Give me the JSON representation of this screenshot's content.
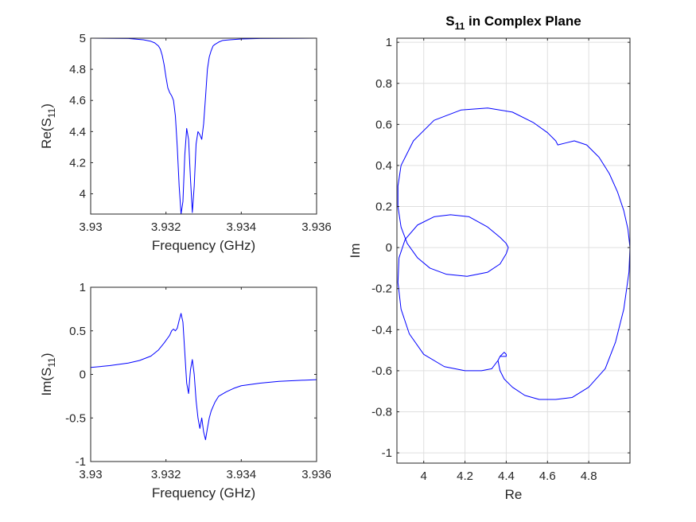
{
  "chart_data": [
    {
      "id": "re",
      "type": "line",
      "title": "",
      "xlabel": "Frequency (GHz)",
      "ylabel": {
        "main": "Re(S",
        "sub": "11",
        "close": ")"
      },
      "xlim": [
        3.93,
        3.936
      ],
      "ylim": [
        3.87,
        5.0
      ],
      "xticks": [
        3.93,
        3.932,
        3.934,
        3.936
      ],
      "xtick_labels": [
        "3.93",
        "3.932",
        "3.934",
        "3.936"
      ],
      "yticks": [
        4.0,
        4.2,
        4.4,
        4.6,
        4.8,
        5.0
      ],
      "ytick_labels": [
        "4",
        "4.2",
        "4.4",
        "4.6",
        "4.8",
        "5"
      ],
      "grid": false,
      "color": "#0000ff",
      "series": [
        {
          "x": [
            3.93,
            3.931,
            3.9314,
            3.9316,
            3.9317,
            3.9318,
            3.93185,
            3.9319,
            3.93195,
            3.932,
            3.93205,
            3.9321,
            3.93215,
            3.9322,
            3.93225,
            3.9323,
            3.93235,
            3.9324,
            3.93245,
            3.9325,
            3.93255,
            3.9326,
            3.93265,
            3.9327,
            3.93275,
            3.9328,
            3.93285,
            3.9329,
            3.93295,
            3.933,
            3.93305,
            3.9331,
            3.93315,
            3.9332,
            3.93325,
            3.9333,
            3.9334,
            3.9335,
            3.9337,
            3.934,
            3.9345,
            3.936
          ],
          "y": [
            5.0,
            4.998,
            4.99,
            4.98,
            4.97,
            4.95,
            4.93,
            4.89,
            4.83,
            4.75,
            4.68,
            4.65,
            4.63,
            4.6,
            4.5,
            4.3,
            4.05,
            3.87,
            3.95,
            4.25,
            4.42,
            4.35,
            4.1,
            3.88,
            4.05,
            4.32,
            4.4,
            4.38,
            4.35,
            4.45,
            4.62,
            4.8,
            4.88,
            4.92,
            4.95,
            4.96,
            4.975,
            4.985,
            4.99,
            4.995,
            4.998,
            5.0
          ]
        }
      ]
    },
    {
      "id": "im",
      "type": "line",
      "title": "",
      "xlabel": "Frequency (GHz)",
      "ylabel": {
        "main": "Im(S",
        "sub": "11",
        "close": ")"
      },
      "xlim": [
        3.93,
        3.936
      ],
      "ylim": [
        -1,
        1
      ],
      "xticks": [
        3.93,
        3.932,
        3.934,
        3.936
      ],
      "xtick_labels": [
        "3.93",
        "3.932",
        "3.934",
        "3.936"
      ],
      "yticks": [
        -1,
        -0.5,
        0,
        0.5,
        1
      ],
      "ytick_labels": [
        "-1",
        "-0.5",
        "0",
        "0.5",
        "1"
      ],
      "grid": false,
      "color": "#0000ff",
      "series": [
        {
          "x": [
            3.93,
            3.9305,
            3.931,
            3.9313,
            3.9316,
            3.9318,
            3.93195,
            3.9321,
            3.93215,
            3.9322,
            3.93225,
            3.9323,
            3.93235,
            3.9324,
            3.93245,
            3.9325,
            3.93255,
            3.9326,
            3.93265,
            3.9327,
            3.93275,
            3.9328,
            3.93285,
            3.9329,
            3.93295,
            3.933,
            3.93305,
            3.9331,
            3.93315,
            3.9332,
            3.9333,
            3.9334,
            3.9336,
            3.9338,
            3.934,
            3.9345,
            3.935,
            3.936
          ],
          "y": [
            0.08,
            0.1,
            0.13,
            0.16,
            0.21,
            0.28,
            0.36,
            0.45,
            0.5,
            0.52,
            0.5,
            0.53,
            0.62,
            0.7,
            0.6,
            0.25,
            -0.1,
            -0.22,
            0.05,
            0.17,
            0.0,
            -0.3,
            -0.5,
            -0.62,
            -0.5,
            -0.66,
            -0.75,
            -0.62,
            -0.5,
            -0.42,
            -0.32,
            -0.25,
            -0.2,
            -0.16,
            -0.13,
            -0.1,
            -0.08,
            -0.06
          ]
        }
      ]
    },
    {
      "id": "cp",
      "type": "line",
      "title": {
        "main": "S",
        "sub": "11",
        "rest": " in Complex Plane"
      },
      "xlabel": "Re",
      "ylabel": "Im",
      "xlim": [
        3.87,
        5.0
      ],
      "ylim": [
        -1.05,
        1.02
      ],
      "xticks": [
        4.0,
        4.2,
        4.4,
        4.6,
        4.8
      ],
      "xtick_labels": [
        "4",
        "4.2",
        "4.4",
        "4.6",
        "4.8"
      ],
      "yticks": [
        -1,
        -0.8,
        -0.6,
        -0.4,
        -0.2,
        0,
        0.2,
        0.4,
        0.6,
        0.8,
        1
      ],
      "ytick_labels": [
        "-1",
        "-0.8",
        "-0.6",
        "-0.4",
        "-0.2",
        "0",
        "0.2",
        "0.4",
        "0.6",
        "0.8",
        "1"
      ],
      "grid": true,
      "color": "#0000ff",
      "series": [
        {
          "x": [
            5.0,
            4.995,
            4.97,
            4.93,
            4.88,
            4.8,
            4.72,
            4.64,
            4.56,
            4.49,
            4.43,
            4.39,
            4.37,
            4.36,
            4.37,
            4.39,
            4.4,
            4.4,
            4.38,
            4.37,
            4.36,
            4.33,
            4.28,
            4.2,
            4.1,
            4.0,
            3.93,
            3.89,
            3.875,
            3.88,
            3.91,
            3.97,
            4.05,
            4.13,
            4.22,
            4.31,
            4.37,
            4.4,
            4.41,
            4.4,
            4.37,
            4.31,
            4.21,
            4.11,
            4.03,
            3.97,
            3.92,
            3.89,
            3.875,
            3.875,
            3.89,
            3.95,
            4.05,
            4.18,
            4.31,
            4.43,
            4.53,
            4.6,
            4.64,
            4.65,
            4.69,
            4.73,
            4.79,
            4.85,
            4.9,
            4.94,
            4.97,
            4.99,
            5.0
          ],
          "y": [
            0.0,
            -0.12,
            -0.3,
            -0.46,
            -0.59,
            -0.68,
            -0.73,
            -0.74,
            -0.74,
            -0.72,
            -0.68,
            -0.64,
            -0.6,
            -0.55,
            -0.53,
            -0.51,
            -0.52,
            -0.53,
            -0.53,
            -0.53,
            -0.55,
            -0.59,
            -0.6,
            -0.6,
            -0.58,
            -0.52,
            -0.42,
            -0.3,
            -0.17,
            -0.05,
            0.04,
            0.11,
            0.15,
            0.16,
            0.15,
            0.1,
            0.05,
            0.02,
            0.0,
            -0.03,
            -0.08,
            -0.12,
            -0.14,
            -0.13,
            -0.1,
            -0.05,
            0.02,
            0.1,
            0.2,
            0.3,
            0.4,
            0.52,
            0.62,
            0.67,
            0.68,
            0.66,
            0.61,
            0.56,
            0.52,
            0.5,
            0.51,
            0.52,
            0.5,
            0.44,
            0.36,
            0.27,
            0.18,
            0.09,
            0.0
          ]
        }
      ]
    }
  ]
}
